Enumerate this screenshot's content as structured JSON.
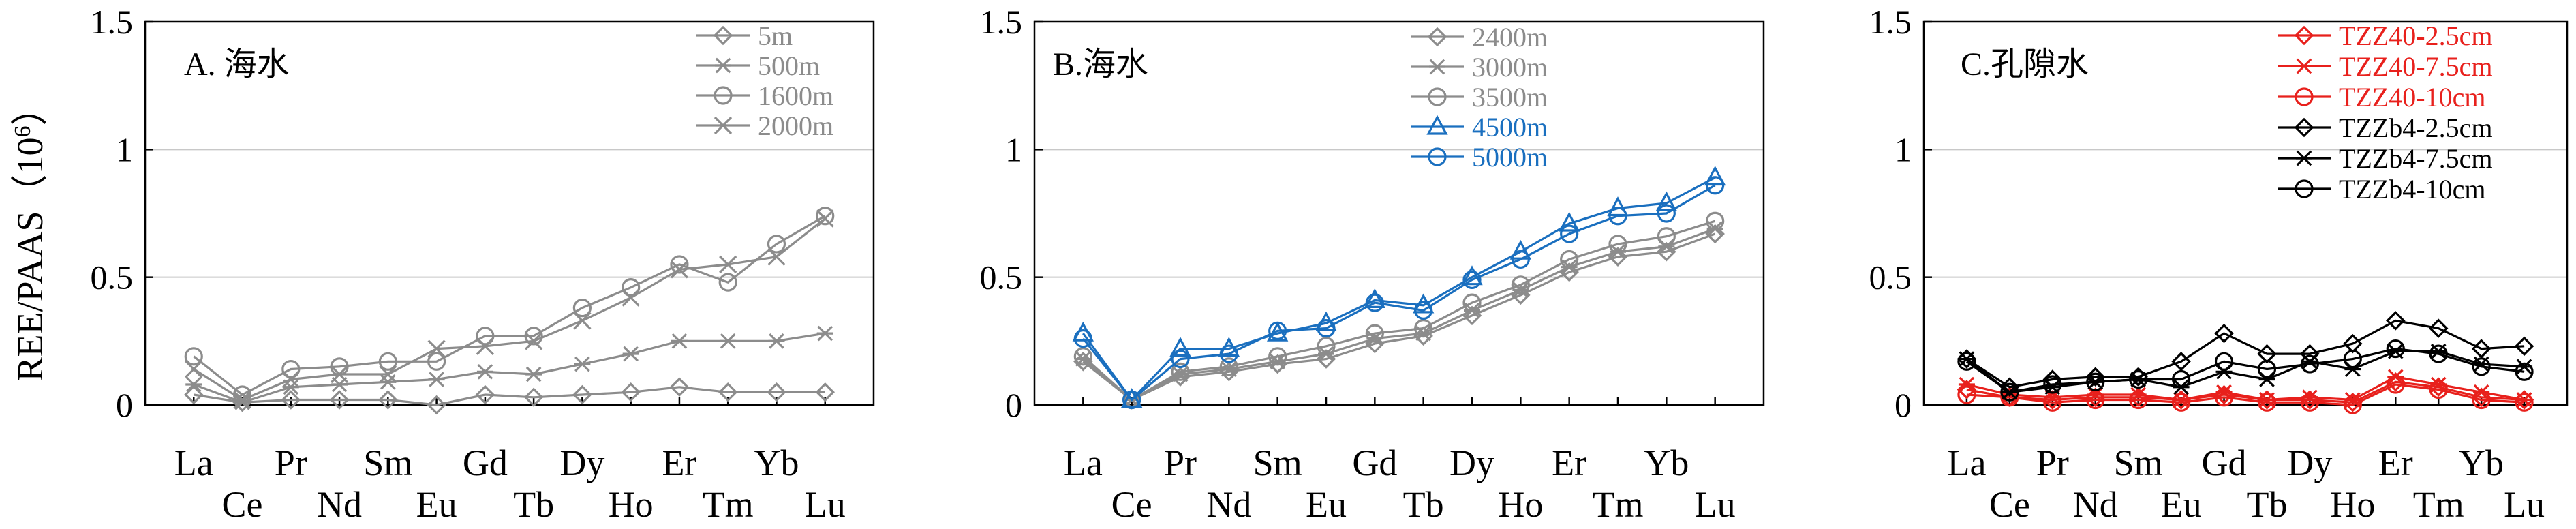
{
  "ylabel_text": "REE/PAAS（10",
  "ylabel_exp": "6",
  "ylabel_close": "）",
  "chart_data": [
    {
      "type": "line",
      "title": "A. 海水",
      "ylabel": "REE/PAAS（10⁶）",
      "categories": [
        "La",
        "Ce",
        "Pr",
        "Nd",
        "Sm",
        "Eu",
        "Gd",
        "Tb",
        "Dy",
        "Ho",
        "Er",
        "Tm",
        "Yb",
        "Lu"
      ],
      "ylim": [
        0,
        1.5
      ],
      "yticks": [
        0,
        0.5,
        1,
        1.5
      ],
      "ytick_labels": [
        "0",
        "0.5",
        "1",
        "1.5"
      ],
      "grid": true,
      "legend_position": "top-right",
      "series": [
        {
          "name": "5m",
          "marker": "diamond",
          "color": "#8c8c8c",
          "values": [
            0.04,
            0.01,
            0.02,
            0.02,
            0.02,
            0.0,
            0.04,
            0.03,
            0.04,
            0.05,
            0.07,
            0.05,
            0.05,
            0.05
          ]
        },
        {
          "name": "500m",
          "marker": "asterisk",
          "color": "#8c8c8c",
          "values": [
            0.08,
            0.01,
            0.07,
            0.08,
            0.09,
            0.1,
            0.13,
            0.12,
            0.16,
            0.2,
            0.25,
            0.25,
            0.25,
            0.28
          ]
        },
        {
          "name": "1600m",
          "marker": "circle",
          "color": "#8c8c8c",
          "values": [
            0.19,
            0.04,
            0.14,
            0.15,
            0.17,
            0.17,
            0.27,
            0.27,
            0.38,
            0.46,
            0.55,
            0.48,
            0.63,
            0.74
          ]
        },
        {
          "name": "2000m",
          "marker": "x",
          "color": "#8c8c8c",
          "values": [
            0.14,
            0.02,
            0.1,
            0.12,
            0.12,
            0.22,
            0.23,
            0.25,
            0.33,
            0.42,
            0.53,
            0.55,
            0.58,
            0.73
          ]
        }
      ]
    },
    {
      "type": "line",
      "title": "B.海水",
      "categories": [
        "La",
        "Ce",
        "Pr",
        "Nd",
        "Sm",
        "Eu",
        "Gd",
        "Tb",
        "Dy",
        "Ho",
        "Er",
        "Tm",
        "Yb",
        "Lu"
      ],
      "ylim": [
        0,
        1.5
      ],
      "yticks": [
        0,
        0.5,
        1,
        1.5
      ],
      "ytick_labels": [
        "0",
        "0.5",
        "1",
        "1.5"
      ],
      "grid": true,
      "legend_position": "top",
      "series": [
        {
          "name": "2400m",
          "marker": "diamond",
          "color": "#8c8c8c",
          "values": [
            0.17,
            0.02,
            0.11,
            0.13,
            0.16,
            0.18,
            0.24,
            0.27,
            0.35,
            0.43,
            0.52,
            0.58,
            0.6,
            0.67
          ]
        },
        {
          "name": "3000m",
          "marker": "asterisk",
          "color": "#8c8c8c",
          "values": [
            0.18,
            0.02,
            0.12,
            0.14,
            0.17,
            0.2,
            0.26,
            0.28,
            0.37,
            0.45,
            0.54,
            0.6,
            0.62,
            0.69
          ]
        },
        {
          "name": "3500m",
          "marker": "circle",
          "color": "#8c8c8c",
          "values": [
            0.19,
            0.02,
            0.13,
            0.15,
            0.19,
            0.23,
            0.28,
            0.3,
            0.4,
            0.47,
            0.57,
            0.63,
            0.66,
            0.72
          ]
        },
        {
          "name": "4500m",
          "marker": "triangle",
          "color": "#1a6fbf",
          "values": [
            0.28,
            0.02,
            0.22,
            0.22,
            0.28,
            0.32,
            0.41,
            0.39,
            0.5,
            0.6,
            0.71,
            0.77,
            0.79,
            0.89
          ]
        },
        {
          "name": "5000m",
          "marker": "circle",
          "color": "#1a6fbf",
          "values": [
            0.26,
            0.02,
            0.18,
            0.2,
            0.29,
            0.3,
            0.4,
            0.37,
            0.49,
            0.57,
            0.67,
            0.74,
            0.75,
            0.86
          ]
        }
      ]
    },
    {
      "type": "line",
      "title": "C.孔隙水",
      "categories": [
        "La",
        "Ce",
        "Pr",
        "Nd",
        "Sm",
        "Eu",
        "Gd",
        "Tb",
        "Dy",
        "Ho",
        "Er",
        "Tm",
        "Yb",
        "Lu"
      ],
      "ylim": [
        0,
        1.5
      ],
      "yticks": [
        0,
        0.5,
        1,
        1.5
      ],
      "ytick_labels": [
        "0",
        "0.5",
        "1",
        "1.5"
      ],
      "grid": true,
      "legend_position": "top-right",
      "series": [
        {
          "name": "TZZ40-2.5cm",
          "marker": "diamond",
          "color": "#e8201c",
          "values": [
            0.06,
            0.03,
            0.02,
            0.03,
            0.03,
            0.02,
            0.04,
            0.02,
            0.02,
            0.01,
            0.09,
            0.07,
            0.03,
            0.02
          ]
        },
        {
          "name": "TZZ40-7.5cm",
          "marker": "asterisk",
          "color": "#e8201c",
          "values": [
            0.08,
            0.04,
            0.03,
            0.04,
            0.04,
            0.02,
            0.05,
            0.02,
            0.03,
            0.02,
            0.11,
            0.08,
            0.05,
            0.02
          ]
        },
        {
          "name": "TZZ40-10cm",
          "marker": "circle",
          "color": "#e8201c",
          "values": [
            0.04,
            0.03,
            0.01,
            0.02,
            0.02,
            0.01,
            0.03,
            0.01,
            0.01,
            0.0,
            0.08,
            0.06,
            0.02,
            0.01
          ]
        },
        {
          "name": "TZZb4-2.5cm",
          "marker": "diamond",
          "color": "#000000",
          "values": [
            0.18,
            0.07,
            0.1,
            0.11,
            0.11,
            0.17,
            0.28,
            0.2,
            0.2,
            0.24,
            0.33,
            0.3,
            0.22,
            0.23
          ]
        },
        {
          "name": "TZZb4-7.5cm",
          "marker": "asterisk",
          "color": "#000000",
          "values": [
            0.18,
            0.05,
            0.07,
            0.09,
            0.1,
            0.07,
            0.13,
            0.1,
            0.17,
            0.14,
            0.21,
            0.21,
            0.16,
            0.15
          ]
        },
        {
          "name": "TZZb4-10cm",
          "marker": "circle",
          "color": "#000000",
          "values": [
            0.17,
            0.05,
            0.08,
            0.09,
            0.1,
            0.1,
            0.17,
            0.14,
            0.16,
            0.18,
            0.22,
            0.2,
            0.15,
            0.13
          ]
        }
      ]
    }
  ]
}
